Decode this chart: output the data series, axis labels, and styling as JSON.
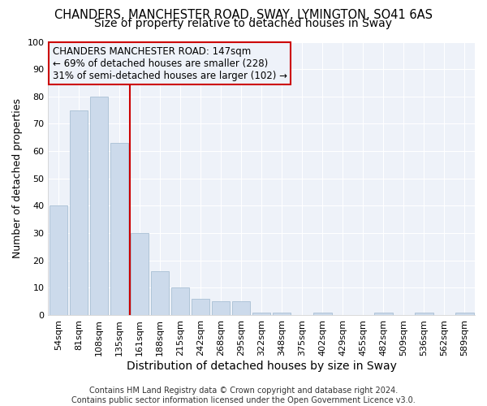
{
  "title1": "CHANDERS, MANCHESTER ROAD, SWAY, LYMINGTON, SO41 6AS",
  "title2": "Size of property relative to detached houses in Sway",
  "xlabel": "Distribution of detached houses by size in Sway",
  "ylabel": "Number of detached properties",
  "footnote": "Contains HM Land Registry data © Crown copyright and database right 2024.\nContains public sector information licensed under the Open Government Licence v3.0.",
  "bar_labels": [
    "54sqm",
    "81sqm",
    "108sqm",
    "135sqm",
    "161sqm",
    "188sqm",
    "215sqm",
    "242sqm",
    "268sqm",
    "295sqm",
    "322sqm",
    "348sqm",
    "375sqm",
    "402sqm",
    "429sqm",
    "455sqm",
    "482sqm",
    "509sqm",
    "536sqm",
    "562sqm",
    "589sqm"
  ],
  "bar_values": [
    40,
    75,
    80,
    63,
    30,
    16,
    10,
    6,
    5,
    5,
    1,
    1,
    0,
    1,
    0,
    0,
    1,
    0,
    1,
    0,
    1
  ],
  "bar_color": "#ccdaeb",
  "bar_edgecolor": "#a8bfd4",
  "vline_x": 3.5,
  "vline_color": "#cc0000",
  "annotation_text": "CHANDERS MANCHESTER ROAD: 147sqm\n← 69% of detached houses are smaller (228)\n31% of semi-detached houses are larger (102) →",
  "annotation_box_edgecolor": "#cc0000",
  "ylim": [
    0,
    100
  ],
  "yticks": [
    0,
    10,
    20,
    30,
    40,
    50,
    60,
    70,
    80,
    90,
    100
  ],
  "background_color": "#ffffff",
  "plot_bg_color": "#eef2f9",
  "grid_color": "#ffffff",
  "title1_fontsize": 10.5,
  "title2_fontsize": 10,
  "xlabel_fontsize": 10,
  "ylabel_fontsize": 9,
  "tick_fontsize": 8,
  "annotation_fontsize": 8.5
}
